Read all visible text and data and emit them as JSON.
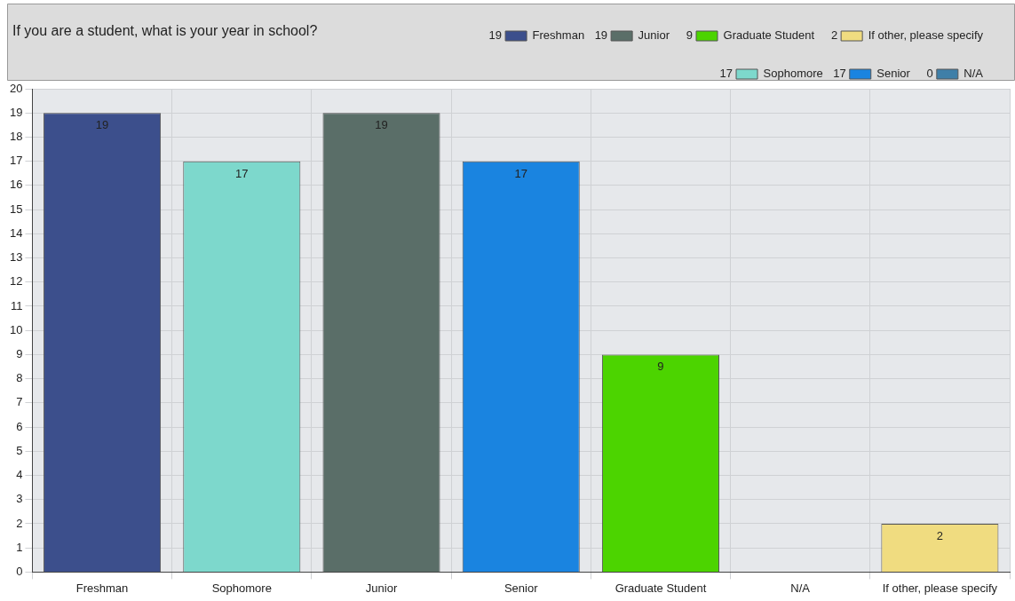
{
  "chart_data": {
    "type": "bar",
    "title": "If you are a student, what is your year in school?",
    "categories": [
      "Freshman",
      "Sophomore",
      "Junior",
      "Senior",
      "Graduate Student",
      "N/A",
      "If other, please specify"
    ],
    "series": [
      {
        "name": "Freshman",
        "color": "#3c4f8c",
        "values": [
          19,
          null,
          null,
          null,
          null,
          null,
          null
        ],
        "value_labels": [
          "19",
          null,
          null,
          null,
          null,
          null,
          null
        ]
      },
      {
        "name": "Sophomore",
        "color": "#7dd8cc",
        "values": [
          null,
          17,
          null,
          null,
          null,
          null,
          null
        ],
        "value_labels": [
          null,
          "17",
          null,
          null,
          null,
          null,
          null
        ]
      },
      {
        "name": "Junior",
        "color": "#5a6e68",
        "values": [
          null,
          null,
          19,
          null,
          null,
          null,
          null
        ],
        "value_labels": [
          null,
          null,
          "19",
          null,
          null,
          null,
          null
        ]
      },
      {
        "name": "Senior",
        "color": "#1a84e0",
        "values": [
          null,
          null,
          null,
          17,
          null,
          null,
          null
        ],
        "value_labels": [
          null,
          null,
          null,
          "17",
          null,
          null,
          null
        ]
      },
      {
        "name": "Graduate Student",
        "color": "#4cd400",
        "values": [
          null,
          null,
          null,
          null,
          9,
          null,
          null
        ],
        "value_labels": [
          null,
          null,
          null,
          null,
          "9",
          null,
          null
        ]
      },
      {
        "name": "N/A",
        "color": "#3f7fa8",
        "values": [
          null,
          null,
          null,
          null,
          null,
          0,
          null
        ],
        "value_labels": [
          null,
          null,
          null,
          null,
          null,
          null,
          null
        ]
      },
      {
        "name": "If other, please specify",
        "color": "#f0dc80",
        "values": [
          null,
          null,
          null,
          null,
          null,
          null,
          2
        ],
        "value_labels": [
          null,
          null,
          null,
          null,
          null,
          null,
          "2"
        ]
      }
    ],
    "ylim": [
      0,
      20
    ],
    "yticks": [
      0,
      1,
      2,
      3,
      4,
      5,
      6,
      7,
      8,
      9,
      10,
      11,
      12,
      13,
      14,
      15,
      16,
      17,
      18,
      19,
      20
    ],
    "annotations": [
      "19",
      "17",
      "19",
      "17",
      "9",
      "0",
      "2"
    ],
    "grid": true,
    "legend": "top right"
  }
}
